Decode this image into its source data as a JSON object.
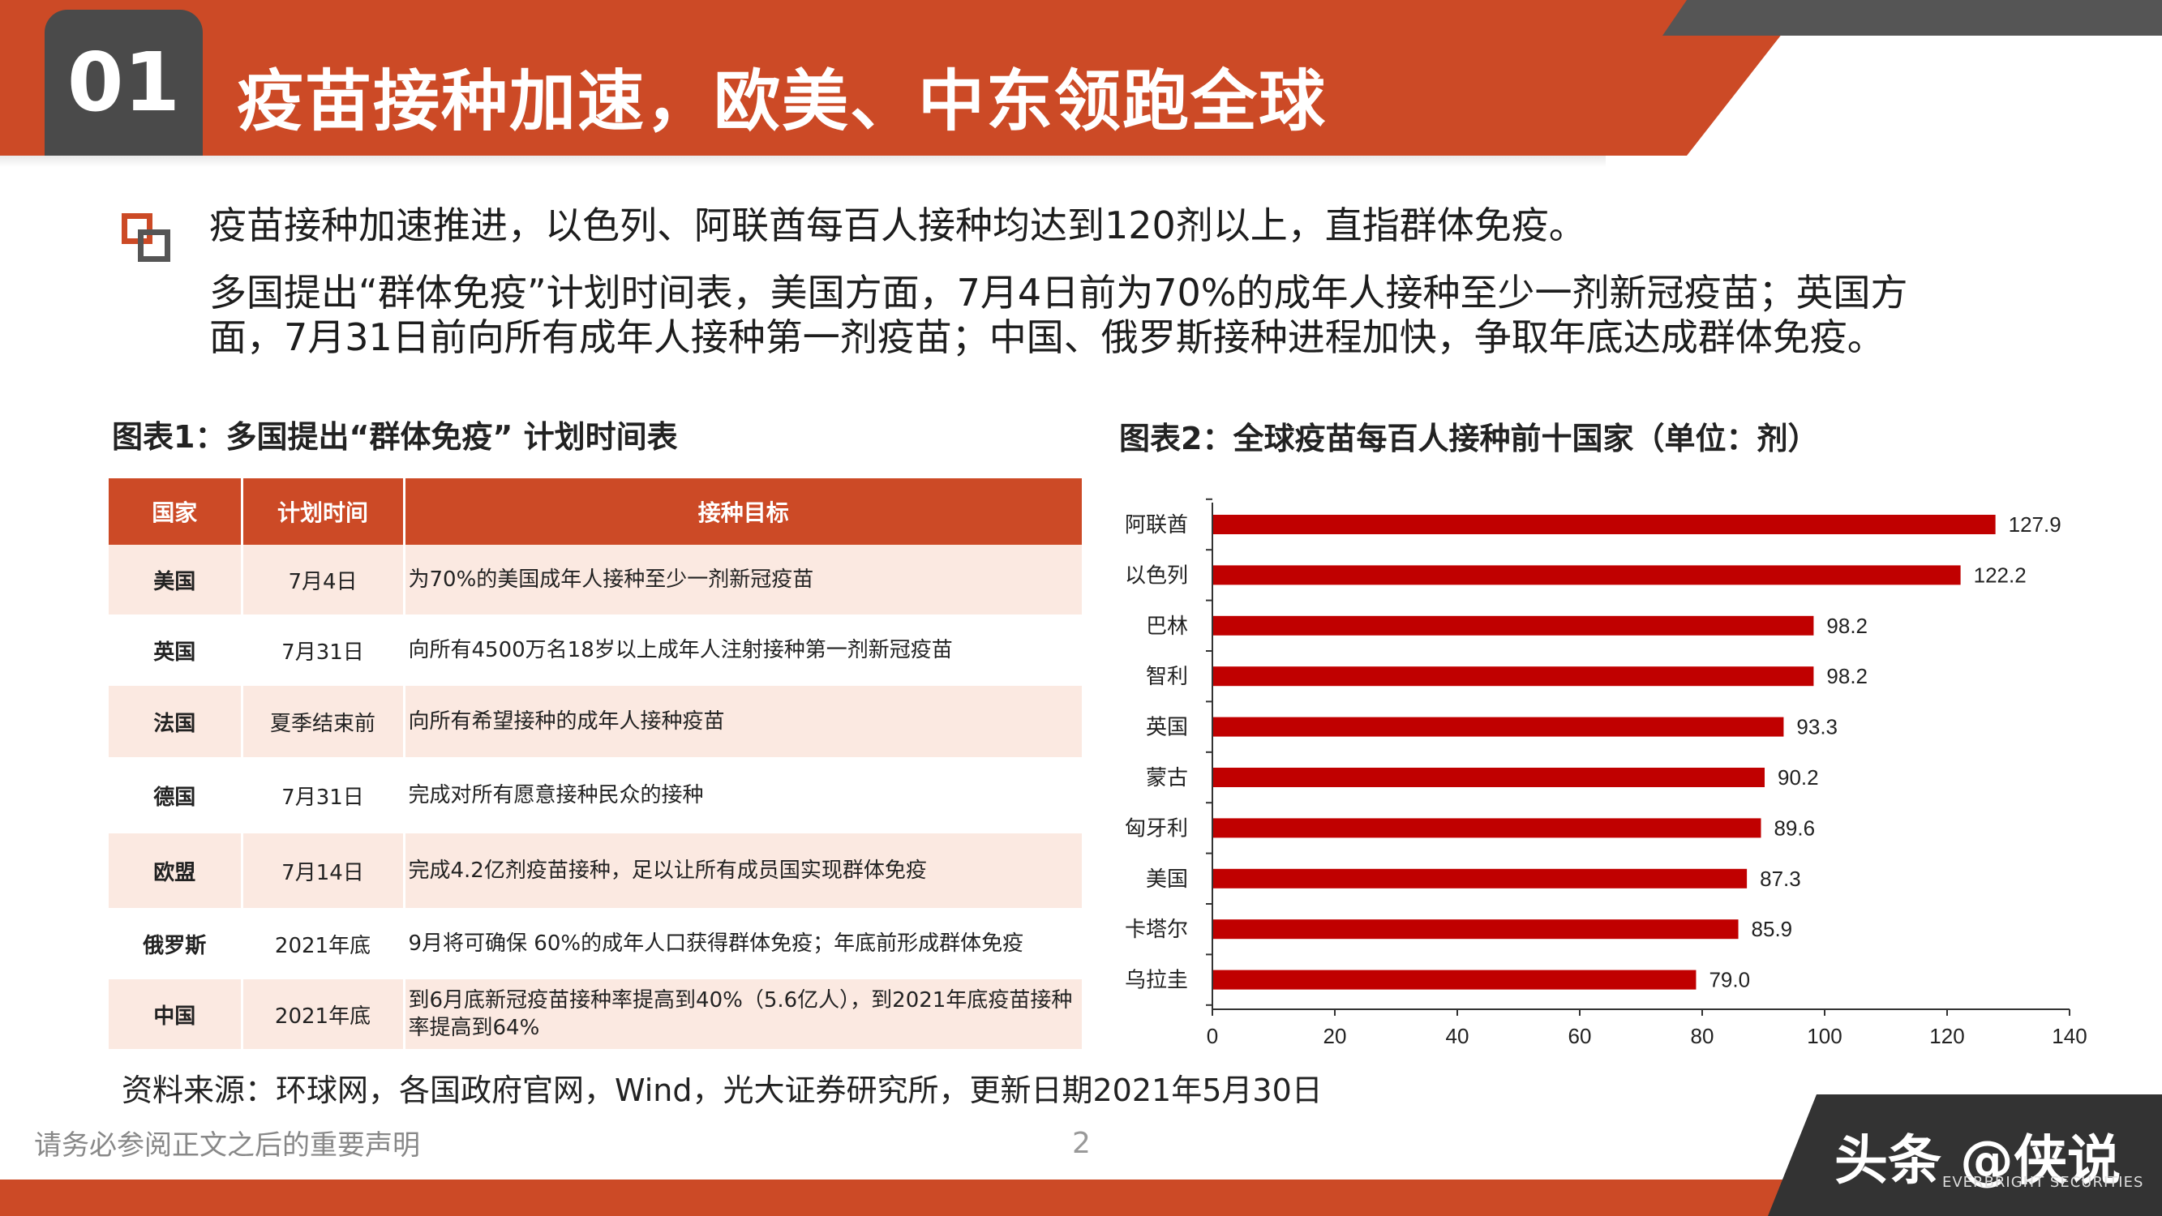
{
  "header": {
    "number": "01",
    "title": "疫苗接种加速，欧美、中东领跑全球"
  },
  "intro": {
    "line1": "疫苗接种加速推进，以色列、阿联酋每百人接种均达到120剂以上，直指群体免疫。",
    "line2": "多国提出“群体免疫”计划时间表，美国方面，7月4日前为70%的成年人接种至少一剂新冠疫苗；英国方",
    "line3": "面，7月31日前向所有成年人接种第一剂疫苗；中国、俄罗斯接种进程加快，争取年底达成群体免疫。"
  },
  "table_caption": "图表1：多国提出“群体免疫” 计划时间表",
  "chart_caption": "图表2：全球疫苗每百人接种前十国家（单位：剂）",
  "table": {
    "headers": [
      "国家",
      "计划时间",
      "接种目标"
    ],
    "rows": [
      {
        "country": "美国",
        "time": "7月4日",
        "goal": "为70%的美国成年人接种至少一剂新冠疫苗"
      },
      {
        "country": "英国",
        "time": "7月31日",
        "goal": "向所有4500万名18岁以上成年人注射接种第一剂新冠疫苗"
      },
      {
        "country": "法国",
        "time": "夏季结束前",
        "goal": "向所有希望接种的成年人接种疫苗"
      },
      {
        "country": "德国",
        "time": "7月31日",
        "goal": "完成对所有愿意接种民众的接种"
      },
      {
        "country": "欧盟",
        "time": "7月14日",
        "goal": "完成4.2亿剂疫苗接种，足以让所有成员国实现群体免疫"
      },
      {
        "country": "俄罗斯",
        "time": "2021年底",
        "goal": "9月将可确保 60%的成年人口获得群体免疫；年底前形成群体免疫"
      },
      {
        "country": "中国",
        "time": "2021年底",
        "goal": "到6月底新冠疫苗接种率提高到40%（5.6亿人），到2021年底疫苗接种率提高到64%"
      }
    ]
  },
  "chart_data": {
    "type": "bar",
    "orientation": "horizontal",
    "categories": [
      "阿联酋",
      "以色列",
      "巴林",
      "智利",
      "英国",
      "蒙古",
      "匈牙利",
      "美国",
      "卡塔尔",
      "乌拉圭"
    ],
    "values": [
      127.9,
      122.2,
      98.2,
      98.2,
      93.3,
      90.2,
      89.6,
      87.3,
      85.9,
      79.0
    ],
    "value_labels": [
      "127.9",
      "122.2",
      "98.2",
      "98.2",
      "93.3",
      "90.2",
      "89.6",
      "87.3",
      "85.9",
      "79.0"
    ],
    "xlim": [
      0,
      140
    ],
    "xticks": [
      "0",
      "20",
      "40",
      "60",
      "80",
      "100",
      "120",
      "140"
    ],
    "bar_color": "#c00000",
    "grid": false
  },
  "source": "资料来源：环球网，各国政府官网，Wind，光大证券研究所，更新日期2021年5月30日",
  "footer": {
    "notice": "请务必参阅正文之后的重要声明",
    "page": "2",
    "logo_text": "头条 @侠说",
    "brand": "EVERBRIGHT SECURITIES"
  },
  "colors": {
    "accent": "#cc4a26",
    "dark": "#4a4a4a",
    "row_tint": "#fbe9e1"
  }
}
